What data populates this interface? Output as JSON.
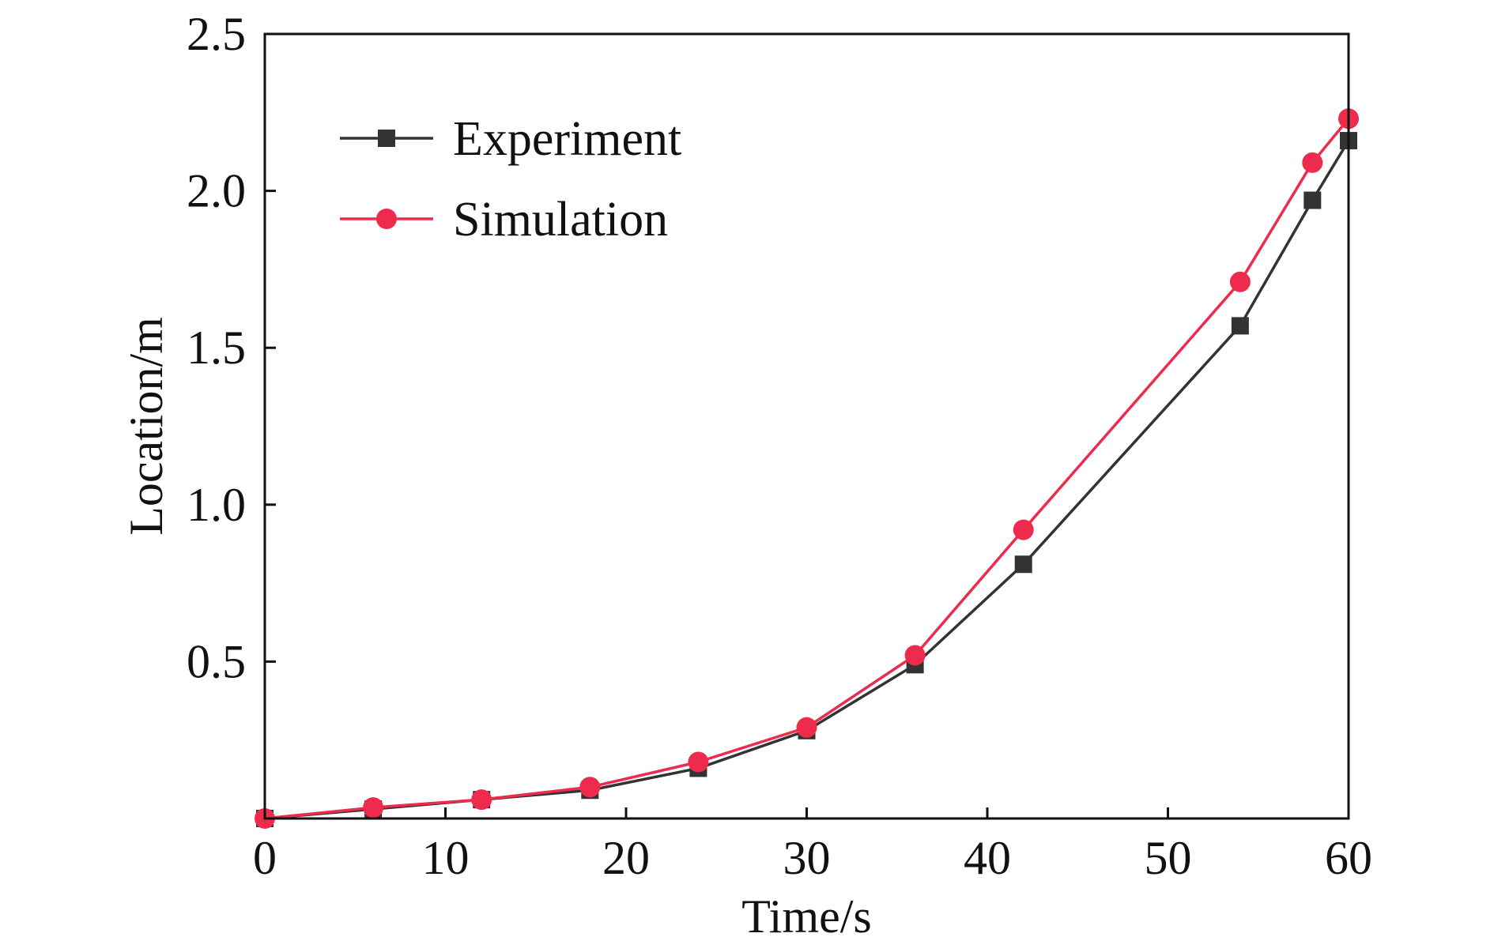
{
  "chart_data": {
    "type": "line",
    "title": "",
    "xlabel": "Time/s",
    "ylabel": "Location/m",
    "xlim": [
      0,
      60
    ],
    "ylim": [
      0,
      2.5
    ],
    "x_ticks": [
      "0",
      "10",
      "20",
      "30",
      "40",
      "50",
      "60"
    ],
    "y_ticks": [
      "0.5",
      "1.0",
      "1.5",
      "2.0",
      "2.5"
    ],
    "grid": false,
    "legend_position": "top-left",
    "series": [
      {
        "name": "Experiment",
        "color": "#333333",
        "marker": "square",
        "x": [
          0,
          6,
          12,
          18,
          24,
          30,
          36,
          42,
          54,
          58,
          60
        ],
        "y": [
          0.0,
          0.03,
          0.06,
          0.09,
          0.16,
          0.28,
          0.49,
          0.81,
          1.57,
          1.97,
          2.16
        ]
      },
      {
        "name": "Simulation",
        "color": "#ee2a4d",
        "marker": "circle",
        "x": [
          0,
          6,
          12,
          18,
          24,
          30,
          36,
          42,
          54,
          58,
          60
        ],
        "y": [
          0.0,
          0.035,
          0.06,
          0.1,
          0.18,
          0.29,
          0.52,
          0.92,
          1.71,
          2.09,
          2.23
        ]
      }
    ]
  }
}
